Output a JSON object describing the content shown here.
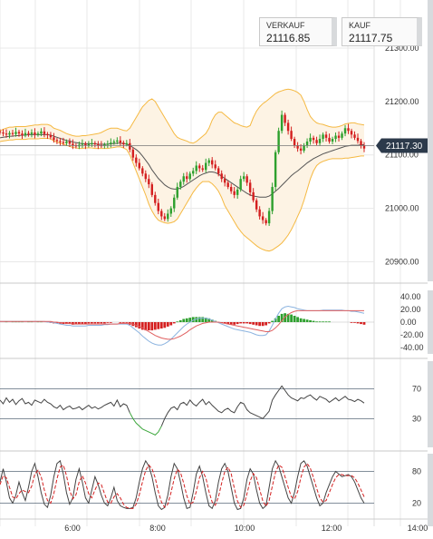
{
  "quotes": {
    "sell": {
      "label": "VERKAUF",
      "value": "21116.85"
    },
    "buy": {
      "label": "KAUF",
      "value": "21117.75"
    }
  },
  "colors": {
    "bull_candle": "#2ea02e",
    "bear_candle": "#d42020",
    "bollinger_band": "#f5b942",
    "band_fill": "#fdf3e4",
    "moving_average": "#555555",
    "price_tag": "#2c3a4b",
    "macd_line": "#8cb4e0",
    "signal_line": "#e06060",
    "oscillator": "#444444",
    "oversold_segment": "#3aa63a",
    "stochastic_d": "#d42020",
    "grid": "#e8e8e8"
  },
  "chart_data": [
    {
      "type": "candlestick",
      "panel": "price",
      "y_ticks": [
        "21300.00",
        "21200.00",
        "21100.00",
        "21000.00",
        "20900.00"
      ],
      "ylim": [
        20860,
        21390
      ],
      "current_price": "21117.30",
      "x_ticks": [
        "6:00",
        "8:00",
        "10:00",
        "12:00",
        "14:00"
      ],
      "close": [
        21142,
        21140,
        21138,
        21141,
        21139,
        21143,
        21140,
        21137,
        21141,
        21139,
        21142,
        21138,
        21140,
        21144,
        21139,
        21137,
        21133,
        21128,
        21126,
        21124,
        21122,
        21125,
        21121,
        21118,
        21116,
        21119,
        21121,
        21118,
        21120,
        21122,
        21120,
        21118,
        21117,
        21119,
        21121,
        21123,
        21125,
        21127,
        21123,
        21120,
        21122,
        21110,
        21095,
        21085,
        21075,
        21065,
        21055,
        21045,
        21025,
        21010,
        20995,
        20985,
        20980,
        20990,
        21000,
        21020,
        21040,
        21050,
        21060,
        21055,
        21065,
        21070,
        21080,
        21075,
        21072,
        21085,
        21090,
        21082,
        21075,
        21065,
        21055,
        21048,
        21040,
        21032,
        21025,
        21035,
        21055,
        21060,
        21048,
        21030,
        21015,
        20998,
        20985,
        20978,
        20972,
        20995,
        21040,
        21105,
        21145,
        21175,
        21160,
        21145,
        21130,
        21118,
        21112,
        21108,
        21118,
        21125,
        21132,
        21128,
        21122,
        21130,
        21138,
        21132,
        21125,
        21130,
        21136,
        21132,
        21140,
        21150,
        21145,
        21138,
        21132,
        21126,
        21118,
        21112
      ],
      "bollinger_upper": [
        21145,
        21148,
        21150,
        21152,
        21152,
        21153,
        21153,
        21153,
        21153,
        21154,
        21155,
        21156,
        21156,
        21157,
        21157,
        21157,
        21155,
        21150,
        21148,
        21146,
        21143,
        21140,
        21138,
        21136,
        21135,
        21135,
        21136,
        21136,
        21137,
        21138,
        21139,
        21140,
        21142,
        21145,
        21148,
        21150,
        21150,
        21150,
        21148,
        21146,
        21145,
        21150,
        21160,
        21170,
        21180,
        21190,
        21196,
        21202,
        21205,
        21200,
        21190,
        21180,
        21170,
        21160,
        21150,
        21140,
        21133,
        21130,
        21128,
        21126,
        21123,
        21122,
        21125,
        21130,
        21135,
        21140,
        21150,
        21165,
        21175,
        21180,
        21180,
        21175,
        21170,
        21165,
        21160,
        21158,
        21155,
        21153,
        21152,
        21155,
        21170,
        21182,
        21190,
        21196,
        21200,
        21205,
        21210,
        21215,
        21218,
        21220,
        21222,
        21223,
        21222,
        21220,
        21217,
        21212,
        21200,
        21185,
        21172,
        21165,
        21160,
        21158,
        21157,
        21155,
        21153,
        21152,
        21152,
        21153,
        21155,
        21158,
        21159,
        21160,
        21160,
        21158,
        21157,
        21156
      ],
      "bollinger_lower": [
        21125,
        21126,
        21127,
        21128,
        21128,
        21129,
        21129,
        21129,
        21129,
        21130,
        21130,
        21130,
        21130,
        21131,
        21131,
        21131,
        21130,
        21126,
        21124,
        21122,
        21120,
        21118,
        21116,
        21114,
        21113,
        21112,
        21112,
        21113,
        21113,
        21113,
        21112,
        21112,
        21112,
        21112,
        21112,
        21113,
        21114,
        21115,
        21115,
        21113,
        21110,
        21100,
        21085,
        21070,
        21055,
        21040,
        21025,
        21008,
        20995,
        20985,
        20978,
        20975,
        20973,
        20972,
        20973,
        20975,
        20980,
        20990,
        21000,
        21010,
        21020,
        21030,
        21038,
        21045,
        21050,
        21050,
        21050,
        21046,
        21040,
        21032,
        21020,
        21005,
        20995,
        20985,
        20975,
        20965,
        20957,
        20950,
        20945,
        20940,
        20935,
        20930,
        20926,
        20923,
        20921,
        20920,
        20922,
        20926,
        20930,
        20935,
        20942,
        20950,
        20960,
        20972,
        20985,
        20998,
        21015,
        21035,
        21055,
        21070,
        21080,
        21085,
        21088,
        21090,
        21092,
        21093,
        21093,
        21093,
        21093,
        21094,
        21094,
        21095,
        21096,
        21097,
        21098,
        21098
      ],
      "moving_average": [
        21132,
        21133,
        21134,
        21135,
        21135,
        21136,
        21136,
        21137,
        21137,
        21138,
        21138,
        21138,
        21138,
        21138,
        21138,
        21138,
        21137,
        21135,
        21133,
        21131,
        21129,
        21127,
        21126,
        21124,
        21123,
        21122,
        21121,
        21121,
        21121,
        21121,
        21121,
        21120,
        21120,
        21120,
        21120,
        21121,
        21121,
        21122,
        21122,
        21121,
        21120,
        21118,
        21114,
        21110,
        21105,
        21098,
        21090,
        21082,
        21072,
        21064,
        21056,
        21050,
        21044,
        21040,
        21037,
        21036,
        21036,
        21038,
        21041,
        21045,
        21049,
        21053,
        21057,
        21061,
        21064,
        21066,
        21068,
        21068,
        21067,
        21064,
        21060,
        21056,
        21052,
        21048,
        21044,
        21040,
        21036,
        21032,
        21028,
        21025,
        21023,
        21022,
        21021,
        21021,
        21021,
        21023,
        21027,
        21032,
        21037,
        21043,
        21049,
        21055,
        21061,
        21066,
        21070,
        21075,
        21080,
        21085,
        21089,
        21093,
        21096,
        21099,
        21102,
        21104,
        21106,
        21108,
        21110,
        21112,
        21114,
        21116,
        21117,
        21118,
        21118,
        21118,
        21119,
        21119
      ]
    },
    {
      "type": "bar+line",
      "panel": "macd",
      "y_ticks": [
        "40.00",
        "20.00",
        "0.00",
        "-20.00",
        "-40.00"
      ],
      "ylim": [
        -50,
        50
      ],
      "histogram": [
        0,
        0,
        1,
        0,
        1,
        1,
        1,
        1,
        0,
        1,
        1,
        0,
        1,
        1,
        0,
        0,
        -1,
        -2,
        -2,
        -3,
        -3,
        -3,
        -3,
        -4,
        -3,
        -3,
        -3,
        -3,
        -2,
        -2,
        -2,
        -2,
        -2,
        -2,
        -1,
        -1,
        0,
        0,
        -1,
        -1,
        -1,
        -4,
        -6,
        -8,
        -10,
        -12,
        -13,
        -13,
        -13,
        -12,
        -11,
        -10,
        -9,
        -7,
        -5,
        -2,
        1,
        3,
        5,
        6,
        7,
        8,
        8,
        8,
        8,
        7,
        6,
        4,
        2,
        0,
        -1,
        -2,
        -3,
        -4,
        -4,
        -3,
        -2,
        -2,
        -2,
        -3,
        -4,
        -5,
        -6,
        -6,
        -5,
        -2,
        2,
        6,
        10,
        13,
        14,
        13,
        12,
        10,
        8,
        6,
        5,
        4,
        3,
        2,
        1,
        1,
        1,
        1,
        1,
        0,
        0,
        0,
        0,
        0,
        0,
        -1,
        -1,
        -2,
        -3,
        -4
      ],
      "macd_line": [
        1,
        1,
        1,
        1,
        1,
        1,
        1,
        1,
        1,
        1,
        1,
        1,
        1,
        1,
        1,
        0,
        0,
        -1,
        -2,
        -3,
        -4,
        -5,
        -5,
        -6,
        -6,
        -6,
        -6,
        -6,
        -5,
        -5,
        -5,
        -5,
        -5,
        -4,
        -4,
        -3,
        -3,
        -3,
        -3,
        -3,
        -3,
        -5,
        -9,
        -13,
        -17,
        -22,
        -26,
        -30,
        -33,
        -35,
        -36,
        -36,
        -34,
        -31,
        -27,
        -22,
        -17,
        -12,
        -7,
        -3,
        0,
        3,
        5,
        6,
        6,
        6,
        5,
        3,
        1,
        -1,
        -3,
        -5,
        -7,
        -9,
        -11,
        -12,
        -13,
        -14,
        -15,
        -16,
        -18,
        -20,
        -21,
        -21,
        -20,
        -14,
        -5,
        5,
        14,
        21,
        24,
        25,
        24,
        23,
        21,
        20,
        19,
        18,
        18,
        18,
        18,
        18,
        19,
        19,
        19,
        19,
        19,
        19,
        19,
        18,
        18,
        17,
        17,
        16,
        15,
        14
      ],
      "signal_line": [
        1,
        1,
        1,
        1,
        1,
        1,
        1,
        1,
        1,
        1,
        1,
        1,
        1,
        1,
        1,
        1,
        1,
        0,
        0,
        -1,
        -1,
        -2,
        -2,
        -3,
        -3,
        -3,
        -3,
        -3,
        -3,
        -3,
        -3,
        -3,
        -3,
        -3,
        -3,
        -3,
        -3,
        -3,
        -2,
        -2,
        -2,
        -2,
        -3,
        -5,
        -7,
        -9,
        -12,
        -15,
        -18,
        -21,
        -23,
        -25,
        -26,
        -27,
        -27,
        -26,
        -24,
        -22,
        -19,
        -16,
        -12,
        -9,
        -6,
        -4,
        -2,
        -1,
        0,
        0,
        0,
        0,
        -1,
        -2,
        -3,
        -4,
        -5,
        -6,
        -7,
        -8,
        -9,
        -10,
        -11,
        -12,
        -13,
        -14,
        -15,
        -15,
        -13,
        -9,
        -4,
        2,
        8,
        12,
        15,
        17,
        18,
        18,
        18,
        18,
        18,
        18,
        18,
        18,
        18,
        18,
        18,
        18,
        18,
        18,
        18,
        18,
        18,
        18,
        18,
        18,
        18,
        18
      ]
    },
    {
      "type": "line",
      "panel": "rsi",
      "y_ticks": [
        "70",
        "30"
      ],
      "ylim": [
        -5,
        105
      ],
      "values": [
        55,
        50,
        58,
        52,
        56,
        49,
        54,
        57,
        50,
        52,
        48,
        55,
        53,
        51,
        56,
        52,
        50,
        46,
        44,
        48,
        42,
        45,
        47,
        43,
        44,
        46,
        42,
        45,
        48,
        44,
        46,
        43,
        45,
        48,
        50,
        52,
        47,
        55,
        46,
        50,
        48,
        38,
        30,
        24,
        20,
        16,
        14,
        12,
        10,
        8,
        12,
        20,
        30,
        38,
        44,
        46,
        42,
        50,
        52,
        48,
        55,
        50,
        47,
        52,
        56,
        49,
        53,
        48,
        44,
        40,
        38,
        42,
        44,
        40,
        38,
        46,
        52,
        50,
        42,
        38,
        36,
        34,
        32,
        30,
        35,
        40,
        55,
        62,
        68,
        74,
        68,
        62,
        58,
        56,
        54,
        58,
        57,
        60,
        62,
        58,
        55,
        60,
        58,
        56,
        52,
        55,
        58,
        54,
        57,
        60,
        56,
        55,
        53,
        56,
        54,
        51
      ],
      "oversold_highlight_range": [
        41,
        51
      ]
    },
    {
      "type": "line",
      "panel": "stochastic",
      "y_ticks": [
        "80",
        "20"
      ],
      "ylim": [
        -10,
        110
      ],
      "k": [
        60,
        85,
        60,
        30,
        20,
        35,
        60,
        40,
        25,
        50,
        80,
        95,
        70,
        40,
        18,
        12,
        35,
        70,
        95,
        100,
        75,
        40,
        18,
        30,
        65,
        85,
        60,
        30,
        20,
        45,
        70,
        55,
        35,
        20,
        15,
        30,
        50,
        25,
        15,
        12,
        10,
        10,
        12,
        30,
        60,
        85,
        100,
        90,
        70,
        40,
        15,
        8,
        12,
        35,
        70,
        95,
        85,
        60,
        30,
        10,
        12,
        40,
        75,
        90,
        70,
        40,
        15,
        10,
        25,
        60,
        85,
        95,
        80,
        50,
        20,
        8,
        10,
        30,
        65,
        85,
        75,
        45,
        20,
        10,
        15,
        50,
        85,
        100,
        90,
        70,
        50,
        30,
        20,
        40,
        70,
        95,
        100,
        90,
        70,
        50,
        30,
        15,
        20,
        40,
        55,
        70,
        80,
        75,
        70,
        72,
        74,
        70,
        60,
        45,
        30,
        20
      ],
      "d": [
        55,
        72,
        68,
        50,
        32,
        28,
        38,
        45,
        42,
        40,
        52,
        75,
        82,
        70,
        45,
        25,
        20,
        38,
        66,
        88,
        92,
        72,
        44,
        28,
        36,
        60,
        72,
        58,
        38,
        30,
        45,
        58,
        55,
        38,
        22,
        20,
        32,
        38,
        30,
        18,
        12,
        10,
        10,
        18,
        36,
        60,
        82,
        92,
        85,
        68,
        42,
        22,
        12,
        18,
        40,
        66,
        84,
        78,
        58,
        34,
        18,
        22,
        42,
        68,
        80,
        68,
        42,
        22,
        16,
        32,
        58,
        80,
        88,
        76,
        48,
        24,
        12,
        16,
        38,
        62,
        76,
        68,
        46,
        24,
        14,
        25,
        52,
        78,
        92,
        88,
        70,
        50,
        32,
        28,
        42,
        68,
        88,
        95,
        86,
        68,
        48,
        30,
        22,
        25,
        40,
        55,
        68,
        74,
        74,
        72,
        72,
        72,
        68,
        58,
        45,
        32
      ]
    }
  ]
}
